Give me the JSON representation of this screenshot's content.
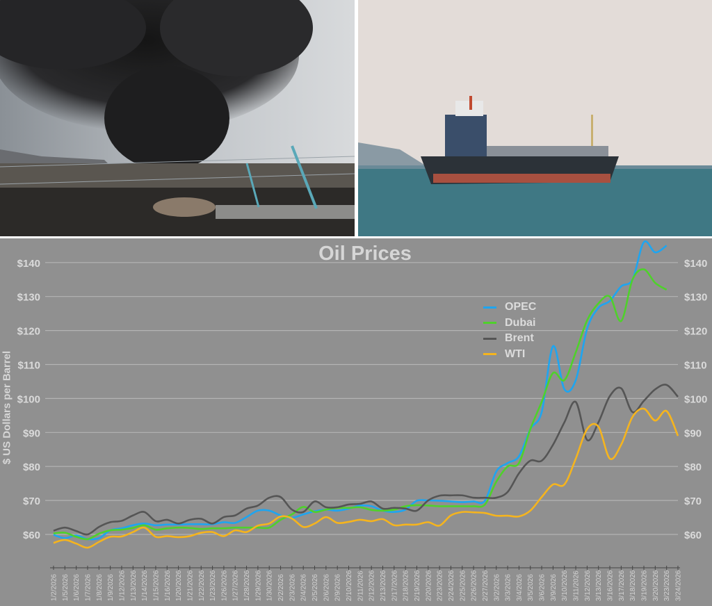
{
  "chart_data": {
    "type": "line",
    "title": "Oil Prices",
    "ylabel": "$ US Dollars per Barrel",
    "xlabel": "",
    "ylim": [
      55,
      145
    ],
    "yticks": [
      60,
      70,
      80,
      90,
      100,
      110,
      120,
      130,
      140
    ],
    "ytick_labels": [
      "$60",
      "$70",
      "$80",
      "$90",
      "$100",
      "$110",
      "$120",
      "$130",
      "$140"
    ],
    "y_axis_sides": [
      "left",
      "right"
    ],
    "grid": true,
    "legend_position": "upper-right",
    "background": "#909090",
    "categories": [
      "1/2/2026",
      "1/5/2026",
      "1/6/2026",
      "1/7/2026",
      "1/8/2026",
      "1/9/2026",
      "1/12/2026",
      "1/13/2026",
      "1/14/2026",
      "1/15/2026",
      "1/16/2026",
      "1/20/2026",
      "1/21/2026",
      "1/22/2026",
      "1/23/2026",
      "1/26/2026",
      "1/27/2026",
      "1/28/2026",
      "1/29/2026",
      "1/30/2026",
      "2/2/2026",
      "2/3/2026",
      "2/4/2026",
      "2/5/2026",
      "2/6/2026",
      "2/9/2026",
      "2/10/2026",
      "2/11/2026",
      "2/12/2026",
      "2/13/2026",
      "2/17/2026",
      "2/18/2026",
      "2/19/2026",
      "2/20/2026",
      "2/23/2026",
      "2/24/2026",
      "2/25/2026",
      "2/26/2026",
      "2/27/2026",
      "3/2/2026",
      "3/3/2026",
      "3/4/2026",
      "3/5/2026",
      "3/6/2026",
      "3/9/2026",
      "3/10/2026",
      "3/11/2026",
      "3/12/2026",
      "3/13/2026",
      "3/16/2026",
      "3/17/2026",
      "3/18/2026",
      "3/19/2026",
      "3/20/2026",
      "3/23/2026",
      "3/24/2026"
    ],
    "series": [
      {
        "name": "OPEC",
        "color": "#1ea5f0",
        "values": [
          59.9,
          58.9,
          59.7,
          58.6,
          58.9,
          61.2,
          61.8,
          62.7,
          63.2,
          62.7,
          62.9,
          62.9,
          63,
          63,
          63,
          63.6,
          63.4,
          65.1,
          67,
          67,
          65.6,
          64.9,
          65.9,
          66.8,
          67.3,
          67,
          67.6,
          68.5,
          68.3,
          67,
          66.6,
          67.3,
          69.9,
          70,
          69.9,
          69.7,
          69.5,
          69.7,
          69.9,
          78.5,
          81,
          83,
          91,
          96,
          115.4,
          102.7,
          105.4,
          120.5,
          126.7,
          128.7,
          133,
          135,
          146,
          143,
          145,
          null
        ]
      },
      {
        "name": "Dubai",
        "color": "#4fd12b",
        "values": [
          60.3,
          60.5,
          59.3,
          58.6,
          60.2,
          61.2,
          61.4,
          61.9,
          62.7,
          61.4,
          61.8,
          62,
          61.9,
          61.6,
          61.8,
          61.8,
          62,
          62,
          62,
          62,
          64.3,
          65.9,
          68.1,
          66.6,
          67.3,
          67.8,
          67.8,
          68,
          67.2,
          67,
          67.3,
          68.3,
          68.6,
          68.5,
          68.3,
          68.3,
          68.3,
          68.3,
          68.8,
          75.5,
          80,
          81,
          91,
          99,
          107.5,
          105.4,
          113.6,
          123,
          128,
          130,
          122.8,
          135,
          138,
          134,
          132,
          null
        ]
      },
      {
        "name": "Brent",
        "color": "#555555",
        "values": [
          61.1,
          62,
          61,
          60,
          62.2,
          63.6,
          64,
          65.6,
          66.6,
          63.9,
          64.3,
          63.2,
          64.3,
          64.6,
          63.2,
          65.1,
          65.6,
          67.6,
          68.5,
          70.8,
          71,
          67.3,
          66.6,
          69.7,
          68,
          68,
          68.8,
          69,
          69.7,
          67.6,
          67.8,
          67.6,
          67,
          70,
          71.4,
          71.5,
          71.5,
          70.8,
          70.8,
          70.8,
          72.5,
          78,
          81.7,
          81.7,
          86.4,
          93,
          99,
          87.8,
          93,
          100.7,
          103,
          96,
          99.3,
          102.7,
          104,
          100.5
        ]
      },
      {
        "name": "WTI",
        "color": "#f5b41e",
        "values": [
          57.5,
          58.4,
          57.3,
          56.1,
          57.8,
          59.3,
          59.4,
          60.7,
          62,
          59.3,
          59.5,
          59.2,
          59.5,
          60.5,
          60.7,
          59.5,
          61.2,
          60.7,
          62.6,
          63.2,
          65.3,
          64.7,
          62.2,
          63.2,
          65.1,
          63.4,
          63.7,
          64.3,
          63.9,
          64.5,
          62.7,
          62.9,
          62.9,
          63.6,
          62.6,
          65.6,
          66.6,
          66.5,
          66.3,
          65.5,
          65.5,
          65.3,
          67,
          71,
          74.7,
          74.7,
          82.3,
          91,
          91.7,
          82.3,
          86.4,
          94.6,
          97,
          93.5,
          96.3,
          89
        ]
      }
    ]
  },
  "photos": {
    "left": "smoke-fire-industrial-site",
    "right": "oil-tanker-at-sea"
  }
}
